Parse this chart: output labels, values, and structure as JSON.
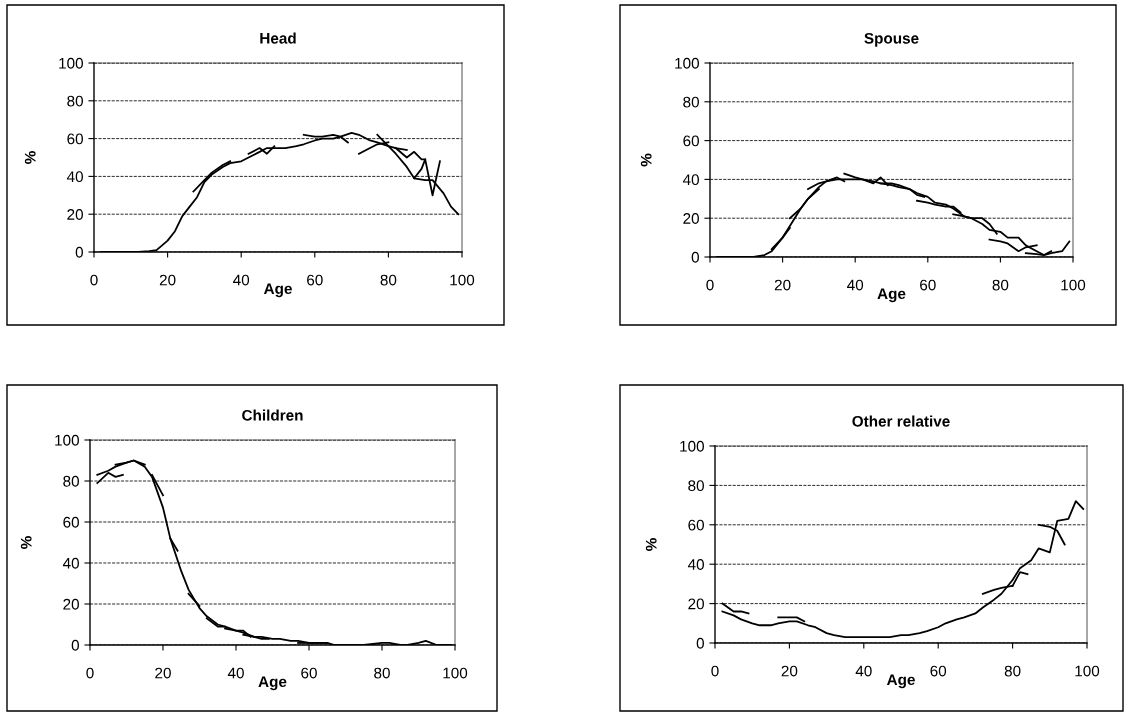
{
  "chart_data": [
    {
      "type": "line",
      "title": "Head",
      "xlabel": "Age",
      "ylabel": "%",
      "xlim": [
        0,
        100
      ],
      "ylim": [
        0,
        100
      ],
      "xticks": [
        0,
        20,
        40,
        60,
        80,
        100
      ],
      "yticks": [
        0,
        20,
        40,
        60,
        80,
        100
      ],
      "grid": "y",
      "series": [
        {
          "color": "#000000",
          "x": [
            2,
            12,
            15,
            17,
            20,
            22,
            24,
            26,
            28,
            30,
            32,
            35,
            37,
            40,
            42,
            45,
            47,
            50,
            52,
            55,
            57,
            60,
            62,
            65,
            67,
            70,
            72,
            75,
            77,
            80,
            82,
            85,
            87,
            90,
            92,
            95,
            97,
            99
          ],
          "values": [
            0,
            0,
            0.5,
            1,
            6,
            11,
            19,
            24,
            29,
            37,
            41,
            45,
            47,
            48,
            50,
            53,
            55,
            55,
            55,
            56,
            57,
            59,
            60,
            60,
            61,
            63,
            62,
            59,
            58,
            56,
            52,
            45,
            39,
            38,
            38,
            31,
            24,
            20
          ]
        },
        {
          "color": "#000000",
          "x": [
            27,
            30,
            32,
            35,
            37
          ],
          "values": [
            32,
            38,
            42,
            46,
            48
          ]
        },
        {
          "color": "#000000",
          "x": [
            42,
            45,
            47,
            49
          ],
          "values": [
            52,
            55,
            52,
            56
          ]
        },
        {
          "color": "#000000",
          "x": [
            57,
            60,
            62,
            65,
            67,
            69
          ],
          "values": [
            62,
            61,
            61,
            62,
            61,
            58
          ]
        },
        {
          "color": "#000000",
          "x": [
            72,
            75,
            77,
            80
          ],
          "values": [
            52,
            55,
            57,
            58
          ]
        },
        {
          "color": "#000000",
          "x": [
            77,
            80,
            82,
            85
          ],
          "values": [
            62,
            56,
            55,
            54
          ]
        },
        {
          "color": "#000000",
          "x": [
            82,
            85,
            87,
            89,
            90
          ],
          "values": [
            55,
            50,
            53,
            49,
            49
          ]
        },
        {
          "color": "#000000",
          "x": [
            87,
            89,
            90,
            92,
            94
          ],
          "values": [
            39,
            44,
            49,
            30,
            48
          ]
        }
      ]
    },
    {
      "type": "line",
      "title": "Spouse",
      "xlabel": "Age",
      "ylabel": "%",
      "xlim": [
        0,
        100
      ],
      "ylim": [
        0,
        100
      ],
      "xticks": [
        0,
        20,
        40,
        60,
        80,
        100
      ],
      "yticks": [
        0,
        20,
        40,
        60,
        80,
        100
      ],
      "grid": "y",
      "series": [
        {
          "color": "#000000",
          "x": [
            2,
            12,
            15,
            17,
            20,
            22,
            25,
            27,
            30,
            32,
            35,
            37,
            40,
            42,
            45,
            47,
            50,
            52,
            55,
            57,
            60,
            62,
            65,
            67,
            70,
            72,
            75,
            77,
            80,
            82,
            85,
            87,
            90,
            92,
            94,
            97,
            99
          ],
          "values": [
            0,
            0,
            1,
            3,
            10,
            16,
            25,
            30,
            36,
            39,
            40,
            40,
            40,
            40,
            39,
            38,
            37,
            36,
            35,
            33,
            31,
            28,
            27,
            25,
            21,
            20,
            17,
            14,
            13,
            10,
            10,
            6,
            3,
            1,
            2,
            3,
            8
          ]
        },
        {
          "color": "#000000",
          "x": [
            17,
            20,
            22
          ],
          "values": [
            4,
            10,
            15
          ]
        },
        {
          "color": "#000000",
          "x": [
            22,
            25,
            27,
            30
          ],
          "values": [
            20,
            25,
            30,
            35
          ]
        },
        {
          "color": "#000000",
          "x": [
            27,
            30,
            32,
            35,
            37
          ],
          "values": [
            35,
            38,
            39,
            41,
            39
          ]
        },
        {
          "color": "#000000",
          "x": [
            37,
            40,
            42,
            45,
            47,
            49
          ],
          "values": [
            43,
            41,
            40,
            38,
            41,
            37
          ]
        },
        {
          "color": "#000000",
          "x": [
            47,
            50,
            52,
            55,
            57,
            59
          ],
          "values": [
            38,
            38,
            37,
            35,
            32,
            31
          ]
        },
        {
          "color": "#000000",
          "x": [
            57,
            60,
            62,
            65,
            67,
            69
          ],
          "values": [
            29,
            28,
            27,
            26,
            26,
            23
          ]
        },
        {
          "color": "#000000",
          "x": [
            67,
            70,
            72,
            75,
            77,
            79
          ],
          "values": [
            22,
            21,
            20,
            20,
            17,
            12
          ]
        },
        {
          "color": "#000000",
          "x": [
            77,
            80,
            82,
            85,
            87,
            90
          ],
          "values": [
            9,
            8,
            7,
            3,
            5,
            6
          ]
        },
        {
          "color": "#000000",
          "x": [
            87,
            90,
            92,
            94
          ],
          "values": [
            2,
            1.5,
            1,
            3
          ]
        }
      ]
    },
    {
      "type": "line",
      "title": "Children",
      "xlabel": "Age",
      "ylabel": "%",
      "xlim": [
        0,
        100
      ],
      "ylim": [
        0,
        100
      ],
      "xticks": [
        0,
        20,
        40,
        60,
        80,
        100
      ],
      "yticks": [
        0,
        20,
        40,
        60,
        80,
        100
      ],
      "grid": "y",
      "series": [
        {
          "color": "#000000",
          "x": [
            2,
            5,
            7,
            10,
            12,
            15,
            17,
            20,
            22,
            25,
            27,
            30,
            32,
            35,
            37,
            40,
            42,
            45,
            47,
            50,
            52,
            55,
            57,
            60,
            62,
            65,
            67,
            70,
            75,
            80,
            82,
            85,
            87,
            90,
            92,
            95,
            99
          ],
          "values": [
            83,
            85,
            87,
            89,
            90,
            87,
            82,
            67,
            52,
            36,
            27,
            18,
            14,
            10,
            9,
            7,
            6,
            4,
            4,
            3,
            3,
            2,
            2,
            1,
            1,
            1,
            0,
            0,
            0,
            1,
            1,
            0,
            0,
            1,
            2,
            0,
            0
          ]
        },
        {
          "color": "#000000",
          "x": [
            2,
            5,
            7,
            9
          ],
          "values": [
            79,
            84,
            82,
            83
          ]
        },
        {
          "color": "#000000",
          "x": [
            7,
            10,
            12,
            15
          ],
          "values": [
            88,
            89,
            90,
            88
          ]
        },
        {
          "color": "#000000",
          "x": [
            17,
            20
          ],
          "values": [
            83,
            73
          ]
        },
        {
          "color": "#000000",
          "x": [
            22,
            24
          ],
          "values": [
            52,
            46
          ]
        },
        {
          "color": "#000000",
          "x": [
            27,
            30
          ],
          "values": [
            25,
            19
          ]
        },
        {
          "color": "#000000",
          "x": [
            32,
            35,
            37
          ],
          "values": [
            13,
            9,
            9
          ]
        },
        {
          "color": "#000000",
          "x": [
            37,
            40,
            42,
            44
          ],
          "values": [
            8,
            7,
            7,
            4
          ]
        },
        {
          "color": "#000000",
          "x": [
            42,
            45,
            47,
            49
          ],
          "values": [
            5,
            4,
            3,
            3
          ]
        },
        {
          "color": "#000000",
          "x": [
            57,
            60,
            62,
            65
          ],
          "values": [
            1,
            1,
            1,
            1
          ]
        }
      ]
    },
    {
      "type": "line",
      "title": "Other relative",
      "xlabel": "Age",
      "ylabel": "%",
      "xlim": [
        0,
        100
      ],
      "ylim": [
        0,
        100
      ],
      "xticks": [
        0,
        20,
        40,
        60,
        80,
        100
      ],
      "yticks": [
        0,
        20,
        40,
        60,
        80,
        100
      ],
      "grid": "y",
      "series": [
        {
          "color": "#000000",
          "x": [
            2,
            5,
            7,
            10,
            12,
            15,
            17,
            20,
            22,
            25,
            27,
            30,
            32,
            35,
            37,
            40,
            42,
            45,
            47,
            50,
            52,
            55,
            57,
            60,
            62,
            65,
            67,
            70,
            72,
            75,
            77,
            80,
            82,
            85,
            87,
            90,
            92,
            95,
            97,
            99
          ],
          "values": [
            16,
            14,
            12,
            10,
            9,
            9,
            10,
            11,
            11,
            9,
            8,
            5,
            4,
            3,
            3,
            3,
            3,
            3,
            3,
            4,
            4,
            5,
            6,
            8,
            10,
            12,
            13,
            15,
            18,
            22,
            25,
            32,
            38,
            42,
            48,
            46,
            62,
            63,
            72,
            68
          ]
        },
        {
          "color": "#000000",
          "x": [
            2,
            5,
            7,
            9
          ],
          "values": [
            20,
            16,
            16,
            15
          ]
        },
        {
          "color": "#000000",
          "x": [
            17,
            20,
            22,
            24
          ],
          "values": [
            13,
            13,
            13,
            11
          ]
        },
        {
          "color": "#000000",
          "x": [
            72,
            75,
            77,
            80
          ],
          "values": [
            25,
            27,
            28,
            29
          ]
        },
        {
          "color": "#000000",
          "x": [
            80,
            82,
            84
          ],
          "values": [
            29,
            36,
            35
          ]
        },
        {
          "color": "#000000",
          "x": [
            87,
            90,
            92,
            94
          ],
          "values": [
            60,
            59,
            57,
            50
          ]
        }
      ]
    }
  ]
}
